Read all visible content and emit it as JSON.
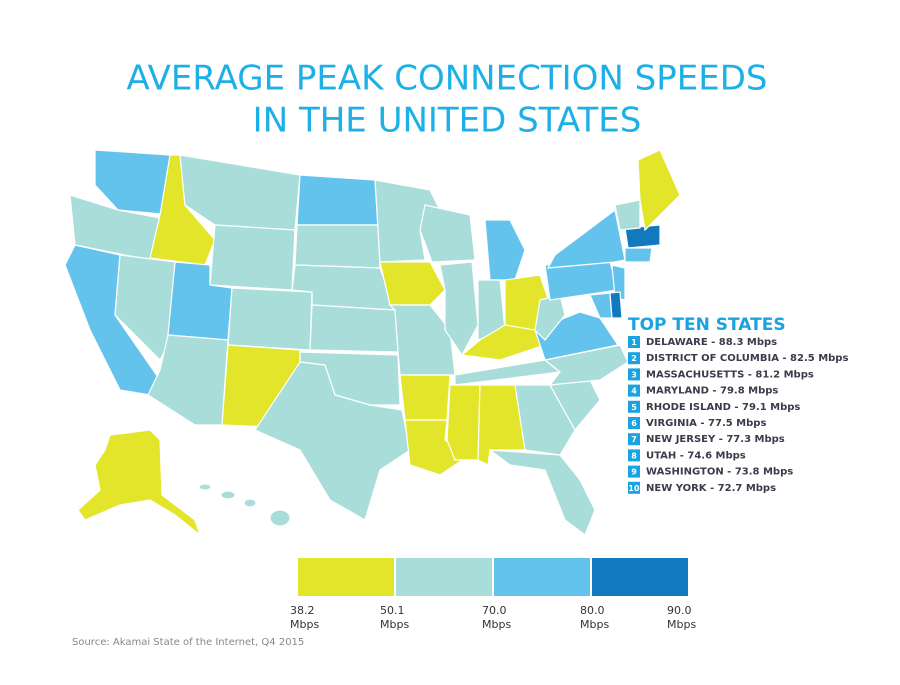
{
  "title": [
    "AVERAGE PEAK CONNECTION SPEEDS",
    "IN THE UNITED STATES"
  ],
  "top_ten": {
    "heading": "TOP TEN STATES",
    "items": [
      {
        "rank": 1,
        "text": "DELAWARE - 88.3 Mbps"
      },
      {
        "rank": 2,
        "text": "DISTRICT OF COLUMBIA - 82.5 Mbps"
      },
      {
        "rank": 3,
        "text": "MASSACHUSETTS - 81.2 Mbps"
      },
      {
        "rank": 4,
        "text": "MARYLAND - 79.8 Mbps"
      },
      {
        "rank": 5,
        "text": "RHODE ISLAND - 79.1 Mbps"
      },
      {
        "rank": 6,
        "text": "VIRGINIA - 77.5 Mbps"
      },
      {
        "rank": 7,
        "text": "NEW JERSEY - 77.3 Mbps"
      },
      {
        "rank": 8,
        "text": "UTAH - 74.6 Mbps"
      },
      {
        "rank": 9,
        "text": "WASHINGTON - 73.8 Mbps"
      },
      {
        "rank": 10,
        "text": "NEW YORK - 72.7 Mbps"
      }
    ]
  },
  "legend": {
    "unit": "Mbps",
    "breaks": [
      {
        "value": 38.2,
        "label": "38.2"
      },
      {
        "value": 50.1,
        "label": "50.1"
      },
      {
        "value": 70,
        "label": "70.0"
      },
      {
        "value": 80,
        "label": "80.0"
      },
      {
        "value": 90,
        "label": "90.0"
      }
    ],
    "colors": [
      "#e3e52b",
      "#a9ddd9",
      "#64c3ed",
      "#1279bf"
    ]
  },
  "source": "Source: Akamai State of the Internet, Q4 2015"
}
